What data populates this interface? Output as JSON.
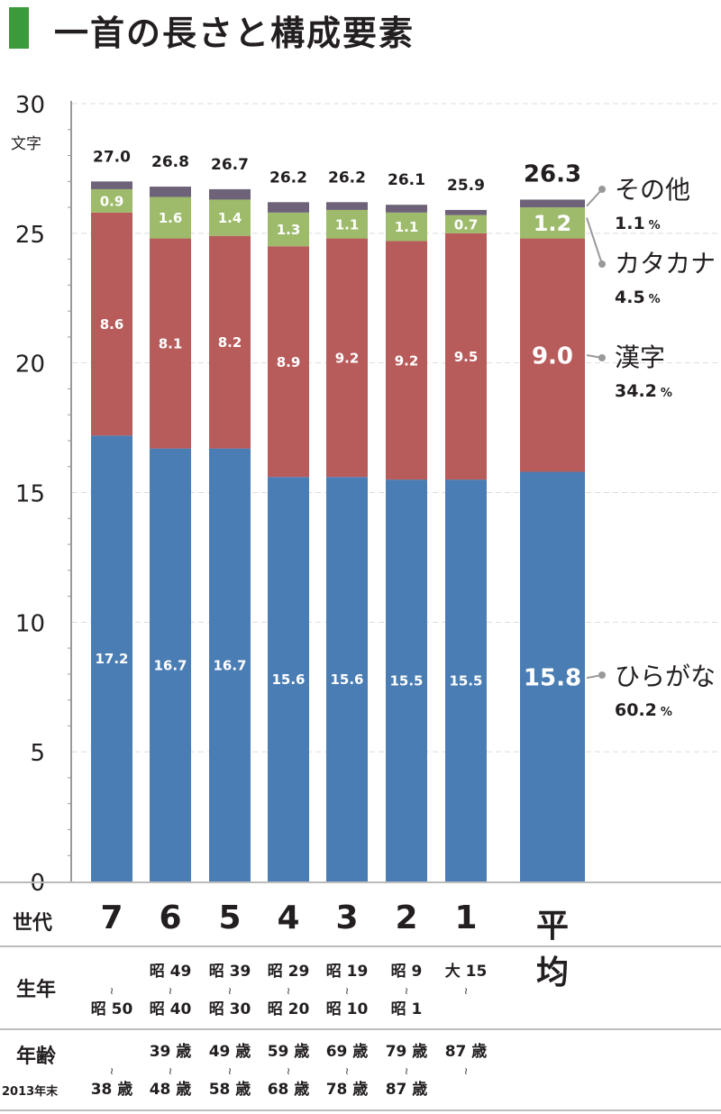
{
  "title": "一首の長さと構成要素",
  "chart_data": {
    "type": "bar",
    "stacked": true,
    "title": "一首の長さと構成要素",
    "ylabel": "文字",
    "ylim": [
      0,
      30
    ],
    "yticks": [
      0,
      5,
      10,
      15,
      20,
      25,
      30
    ],
    "categories": [
      "7",
      "6",
      "5",
      "4",
      "3",
      "2",
      "1",
      "平均"
    ],
    "series": [
      {
        "name": "ひらがな",
        "color": "#4a7db3",
        "values": [
          17.2,
          16.7,
          16.7,
          15.6,
          15.6,
          15.5,
          15.5,
          15.8
        ]
      },
      {
        "name": "漢字",
        "color": "#b75b5b",
        "values": [
          8.6,
          8.1,
          8.2,
          8.9,
          9.2,
          9.2,
          9.5,
          9.0
        ]
      },
      {
        "name": "カタカナ",
        "color": "#9dbb6b",
        "values": [
          0.9,
          1.6,
          1.4,
          1.3,
          1.1,
          1.1,
          0.7,
          1.2
        ]
      },
      {
        "name": "その他",
        "color": "#6e6279",
        "values": [
          0.3,
          0.4,
          0.4,
          0.4,
          0.3,
          0.3,
          0.2,
          0.3
        ]
      }
    ],
    "totals": [
      "27.0",
      "26.8",
      "26.7",
      "26.2",
      "26.2",
      "26.1",
      "25.9",
      "26.3"
    ],
    "legend": [
      {
        "name": "その他",
        "percent": "1.1"
      },
      {
        "name": "カタカナ",
        "percent": "4.5"
      },
      {
        "name": "漢字",
        "percent": "34.2"
      },
      {
        "name": "ひらがな",
        "percent": "60.2"
      }
    ],
    "percent_sign": "%"
  },
  "table": {
    "generation_label": "世代",
    "birth_label": "生年",
    "age_label": "年齢",
    "age_sublabel": "2013年末",
    "tilde": "≀",
    "birth_from": [
      "",
      "昭 49",
      "昭 39",
      "昭 29",
      "昭 19",
      "昭 9",
      "大 15"
    ],
    "birth_to": [
      "昭 50",
      "昭 40",
      "昭 30",
      "昭 20",
      "昭 10",
      "昭 1",
      ""
    ],
    "age_from": [
      "",
      "39 歳",
      "49 歳",
      "59 歳",
      "69 歳",
      "79 歳",
      "87 歳"
    ],
    "age_to": [
      "38 歳",
      "48 歳",
      "58 歳",
      "68 歳",
      "78 歳",
      "87 歳",
      ""
    ]
  }
}
